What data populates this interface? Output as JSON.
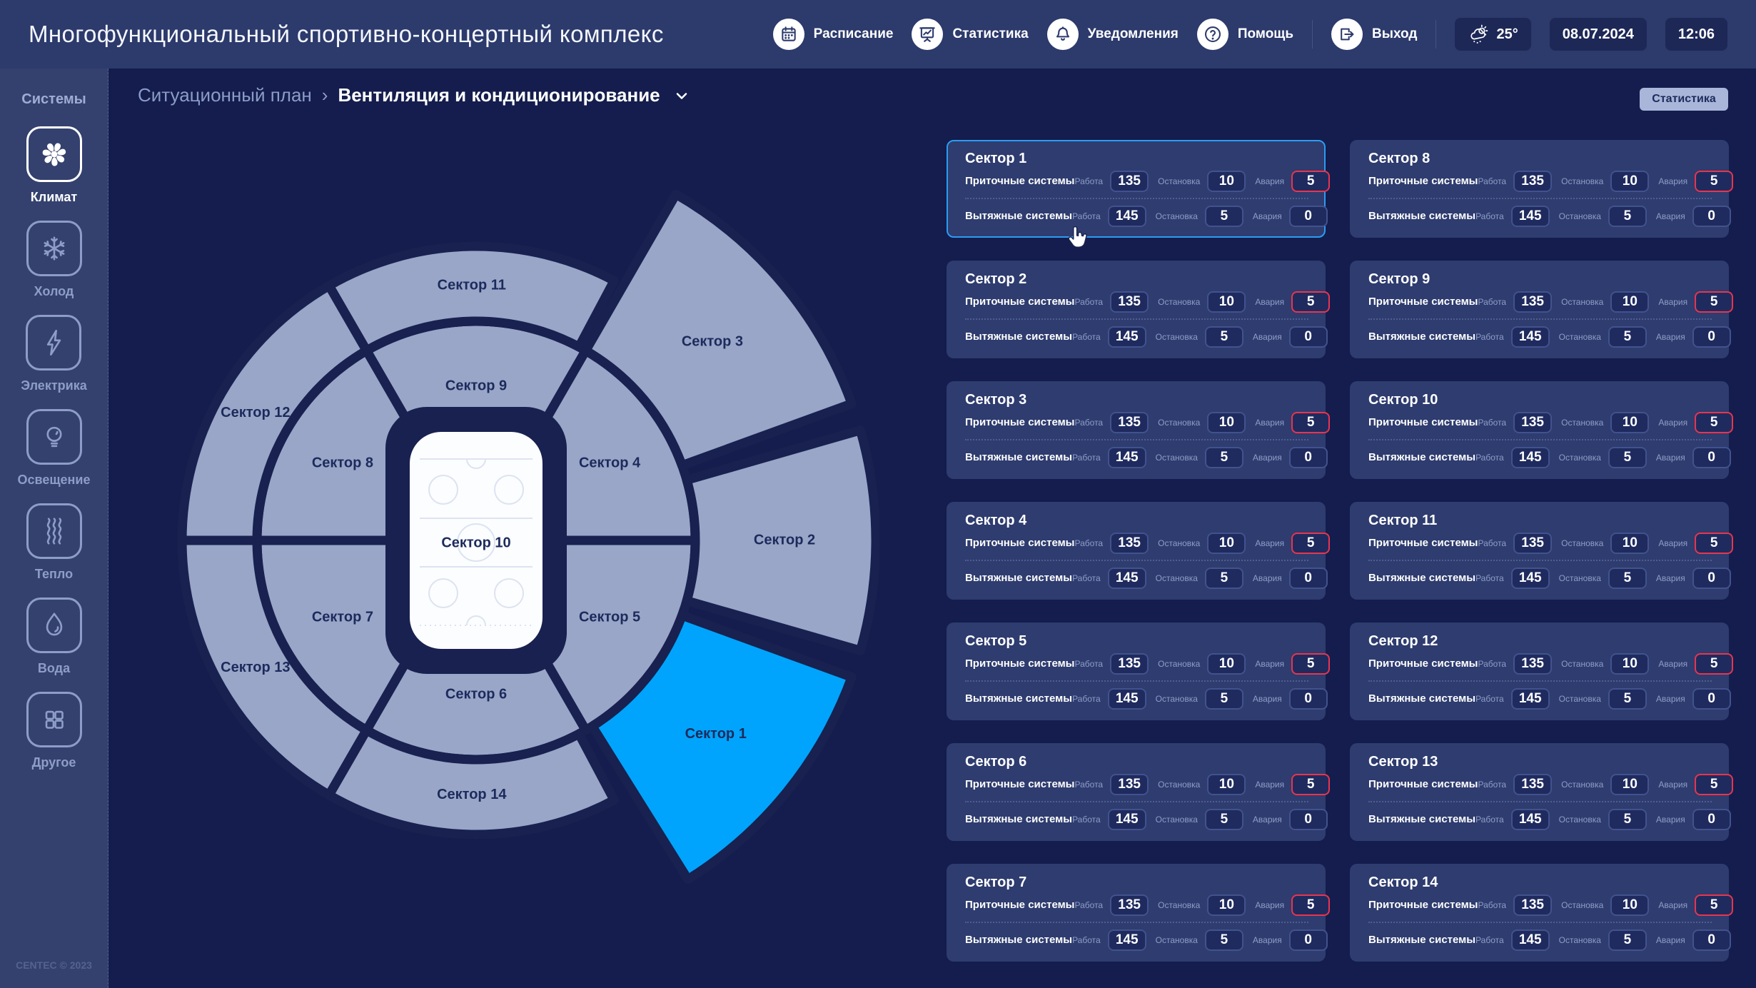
{
  "header": {
    "title": "Многофункциональный спортивно-концертный комплекс",
    "nav": [
      {
        "id": "schedule",
        "label": "Расписание",
        "icon": "calendar-icon"
      },
      {
        "id": "statistics",
        "label": "Статистика",
        "icon": "chart-board-icon"
      },
      {
        "id": "notifications",
        "label": "Уведомления",
        "icon": "bell-icon"
      },
      {
        "id": "help",
        "label": "Помощь",
        "icon": "question-icon"
      },
      {
        "id": "exit",
        "label": "Выход",
        "icon": "exit-icon"
      }
    ],
    "weather": "25°",
    "date": "08.07.2024",
    "time": "12:06"
  },
  "sidebar": {
    "title": "Системы",
    "copyright": "CENTEC © 2023",
    "items": [
      {
        "id": "climate",
        "label": "Климат",
        "icon": "fan-icon",
        "active": true
      },
      {
        "id": "cold",
        "label": "Холод",
        "icon": "snowflake-icon",
        "active": false
      },
      {
        "id": "electricity",
        "label": "Электрика",
        "icon": "lightning-icon",
        "active": false
      },
      {
        "id": "lighting",
        "label": "Освещение",
        "icon": "bulb-icon",
        "active": false
      },
      {
        "id": "heat",
        "label": "Тепло",
        "icon": "heat-waves-icon",
        "active": false
      },
      {
        "id": "water",
        "label": "Вода",
        "icon": "water-drop-icon",
        "active": false
      },
      {
        "id": "other",
        "label": "Другое",
        "icon": "grid-icon",
        "active": false
      }
    ]
  },
  "breadcrumb": {
    "parent": "Ситуационный план",
    "separator": "›",
    "current": "Вентиляция и кондиционирование"
  },
  "toolbar": {
    "stats_label": "Статистика"
  },
  "colors": {
    "accent_selected": "#2b9cf2",
    "sector_highlight": "#00a4fc",
    "alarm_red": "#e8354e",
    "sector_fill": "#9aa6c8",
    "header_bg": "#2c3a6c",
    "page_bg": "#141d4d",
    "card_bg": "#2e3c6f"
  },
  "map": {
    "center_label": "Сектор 10",
    "sectors": [
      {
        "label": "Сектор 9",
        "ring": "inner",
        "a0": -120,
        "a1": -60
      },
      {
        "label": "Сектор 4",
        "ring": "inner",
        "a0": -60,
        "a1": 0
      },
      {
        "label": "Сектор 5",
        "ring": "inner",
        "a0": 0,
        "a1": 60
      },
      {
        "label": "Сектор 6",
        "ring": "inner",
        "a0": 60,
        "a1": 120
      },
      {
        "label": "Сектор 7",
        "ring": "inner",
        "a0": 120,
        "a1": 180
      },
      {
        "label": "Сектор 8",
        "ring": "inner",
        "a0": -180,
        "a1": -120
      },
      {
        "label": "Сектор 11",
        "ring": "outer",
        "a0": -120,
        "a1": -62
      },
      {
        "label": "Сектор 12",
        "ring": "outer",
        "a0": -180,
        "a1": -120
      },
      {
        "label": "Сектор 13",
        "ring": "outer",
        "a0": 120,
        "a1": 180
      },
      {
        "label": "Сектор 14",
        "ring": "outer",
        "a0": 62,
        "a1": 120
      },
      {
        "label": "Сектор 3",
        "ring": "wing",
        "a0": -60,
        "a1": -20
      },
      {
        "label": "Сектор 2",
        "ring": "wing",
        "a0": -16,
        "a1": 16
      },
      {
        "label": "Сектор 1",
        "ring": "wing",
        "a0": 20,
        "a1": 58,
        "highlight": true
      }
    ]
  },
  "cards": {
    "labels": {
      "supply": "Приточные системы",
      "exhaust": "Вытяжные системы",
      "work": "Работа",
      "stop": "Остановка",
      "alarm": "Авария"
    },
    "items": [
      {
        "name": "Сектор 1",
        "selected": true,
        "supply": {
          "work": 135,
          "stop": 10,
          "alarm": 5,
          "alarm_alert": true
        },
        "exhaust": {
          "work": 145,
          "stop": 5,
          "alarm": 0,
          "alarm_alert": false
        }
      },
      {
        "name": "Сектор 2",
        "selected": false,
        "supply": {
          "work": 135,
          "stop": 10,
          "alarm": 5,
          "alarm_alert": true
        },
        "exhaust": {
          "work": 145,
          "stop": 5,
          "alarm": 0,
          "alarm_alert": false
        }
      },
      {
        "name": "Сектор 3",
        "selected": false,
        "supply": {
          "work": 135,
          "stop": 10,
          "alarm": 5,
          "alarm_alert": true
        },
        "exhaust": {
          "work": 145,
          "stop": 5,
          "alarm": 0,
          "alarm_alert": false
        }
      },
      {
        "name": "Сектор 4",
        "selected": false,
        "supply": {
          "work": 135,
          "stop": 10,
          "alarm": 5,
          "alarm_alert": true
        },
        "exhaust": {
          "work": 145,
          "stop": 5,
          "alarm": 0,
          "alarm_alert": false
        }
      },
      {
        "name": "Сектор 5",
        "selected": false,
        "supply": {
          "work": 135,
          "stop": 10,
          "alarm": 5,
          "alarm_alert": true
        },
        "exhaust": {
          "work": 145,
          "stop": 5,
          "alarm": 0,
          "alarm_alert": false
        }
      },
      {
        "name": "Сектор 6",
        "selected": false,
        "supply": {
          "work": 135,
          "stop": 10,
          "alarm": 5,
          "alarm_alert": true
        },
        "exhaust": {
          "work": 145,
          "stop": 5,
          "alarm": 0,
          "alarm_alert": false
        }
      },
      {
        "name": "Сектор 7",
        "selected": false,
        "supply": {
          "work": 135,
          "stop": 10,
          "alarm": 5,
          "alarm_alert": true
        },
        "exhaust": {
          "work": 145,
          "stop": 5,
          "alarm": 0,
          "alarm_alert": false
        }
      },
      {
        "name": "Сектор 8",
        "selected": false,
        "supply": {
          "work": 135,
          "stop": 10,
          "alarm": 5,
          "alarm_alert": true
        },
        "exhaust": {
          "work": 145,
          "stop": 5,
          "alarm": 0,
          "alarm_alert": false
        }
      },
      {
        "name": "Сектор 9",
        "selected": false,
        "supply": {
          "work": 135,
          "stop": 10,
          "alarm": 5,
          "alarm_alert": true
        },
        "exhaust": {
          "work": 145,
          "stop": 5,
          "alarm": 0,
          "alarm_alert": false
        }
      },
      {
        "name": "Сектор 10",
        "selected": false,
        "supply": {
          "work": 135,
          "stop": 10,
          "alarm": 5,
          "alarm_alert": true
        },
        "exhaust": {
          "work": 145,
          "stop": 5,
          "alarm": 0,
          "alarm_alert": false
        }
      },
      {
        "name": "Сектор 11",
        "selected": false,
        "supply": {
          "work": 135,
          "stop": 10,
          "alarm": 5,
          "alarm_alert": true
        },
        "exhaust": {
          "work": 145,
          "stop": 5,
          "alarm": 0,
          "alarm_alert": false
        }
      },
      {
        "name": "Сектор 12",
        "selected": false,
        "supply": {
          "work": 135,
          "stop": 10,
          "alarm": 5,
          "alarm_alert": true
        },
        "exhaust": {
          "work": 145,
          "stop": 5,
          "alarm": 0,
          "alarm_alert": false
        }
      },
      {
        "name": "Сектор 13",
        "selected": false,
        "supply": {
          "work": 135,
          "stop": 10,
          "alarm": 5,
          "alarm_alert": true
        },
        "exhaust": {
          "work": 145,
          "stop": 5,
          "alarm": 0,
          "alarm_alert": false
        }
      },
      {
        "name": "Сектор 14",
        "selected": false,
        "supply": {
          "work": 135,
          "stop": 10,
          "alarm": 5,
          "alarm_alert": true
        },
        "exhaust": {
          "work": 145,
          "stop": 5,
          "alarm": 0,
          "alarm_alert": false
        }
      }
    ]
  }
}
